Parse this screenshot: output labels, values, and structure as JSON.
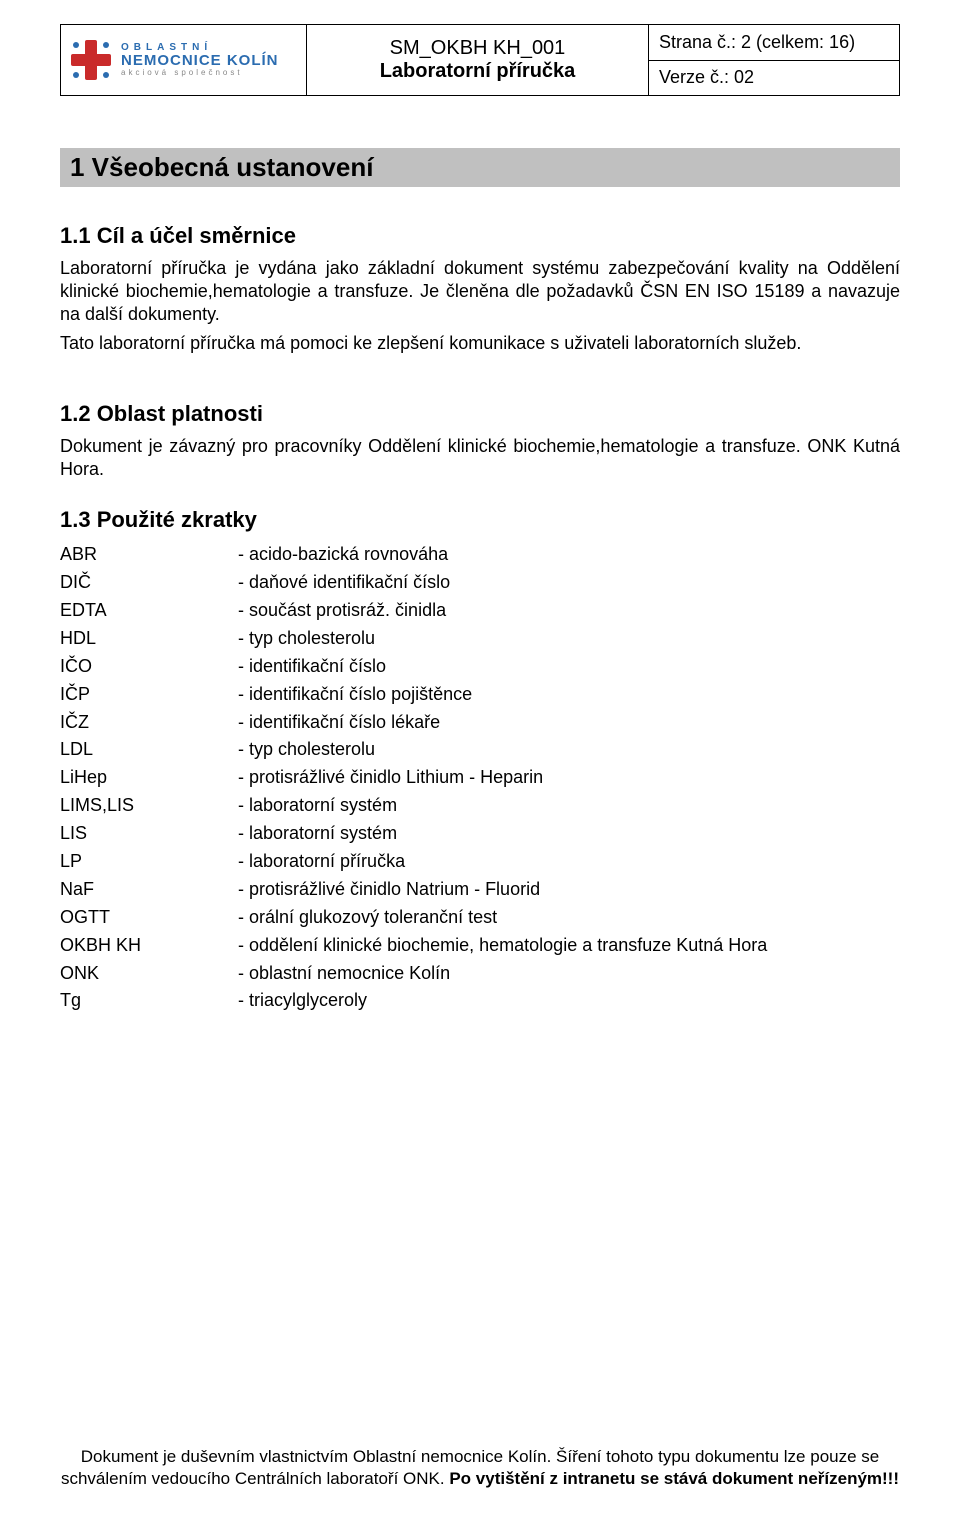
{
  "header": {
    "logo": {
      "line1": "OBLASTNÍ",
      "line2": "NEMOCNICE KOLÍN",
      "line3": "akciová společnost"
    },
    "doc_id": "SM_OKBH KH_001",
    "doc_title": "Laboratorní příručka",
    "page_info": "Strana č.: 2 (celkem: 16)",
    "version": "Verze č.: 02"
  },
  "section_bar": "1  Všeobecná ustanovení",
  "s11": {
    "heading": "1.1  Cíl a účel směrnice",
    "p1": "Laboratorní příručka je vydána jako základní dokument systému zabezpečování kvality na Oddělení klinické biochemie,hematologie a transfuze. Je členěna dle požadavků ČSN EN ISO 15189 a navazuje na další dokumenty.",
    "p2": "Tato laboratorní příručka má pomoci ke zlepšení komunikace s uživateli laboratorních služeb."
  },
  "s12": {
    "heading": "1.2  Oblast platnosti",
    "p1": "Dokument je závazný pro pracovníky Oddělení klinické biochemie,hematologie a transfuze. ONK Kutná Hora."
  },
  "s13": {
    "heading": "1.3  Použité zkratky",
    "items": [
      {
        "k": "ABR",
        "v": "acido-bazická rovnováha"
      },
      {
        "k": "DIČ",
        "v": "daňové identifikační číslo"
      },
      {
        "k": "EDTA",
        "v": "součást protisráž. činidla"
      },
      {
        "k": "HDL",
        "v": "typ cholesterolu"
      },
      {
        "k": "IČO",
        "v": "identifikační číslo"
      },
      {
        "k": "IČP",
        "v": "identifikační číslo pojištěnce"
      },
      {
        "k": "IČZ",
        "v": "identifikační číslo lékaře"
      },
      {
        "k": "LDL",
        "v": "typ cholesterolu"
      },
      {
        "k": "LiHep",
        "v": "protisrážlivé činidlo Lithium - Heparin"
      },
      {
        "k": "LIMS,LIS",
        "v": "laboratorní systém"
      },
      {
        "k": "LIS",
        "v": "laboratorní systém"
      },
      {
        "k": "LP",
        "v": "laboratorní příručka"
      },
      {
        "k": "NaF",
        "v": "protisrážlivé činidlo Natrium - Fluorid"
      },
      {
        "k": "OGTT",
        "v": "orální glukozový toleranční test"
      },
      {
        "k": "OKBH KH",
        "v": "oddělení klinické biochemie, hematologie a transfuze Kutná Hora"
      },
      {
        "k": "ONK",
        "v": "oblastní nemocnice Kolín"
      },
      {
        "k": "Tg",
        "v": "triacylglyceroly"
      }
    ]
  },
  "footer": {
    "t1": "Dokument je duševním vlastnictvím Oblastní nemocnice Kolín. Šíření tohoto typu dokumentu lze pouze se schválením vedoucího Centrálních laboratoří ONK. ",
    "t2": "Po vytištění z intranetu se stává dokument neřízeným!!!"
  },
  "colors": {
    "section_bg": "#c0c0c0",
    "text": "#000000",
    "logo_red": "#c92a2a",
    "logo_blue": "#2b6cb0"
  }
}
